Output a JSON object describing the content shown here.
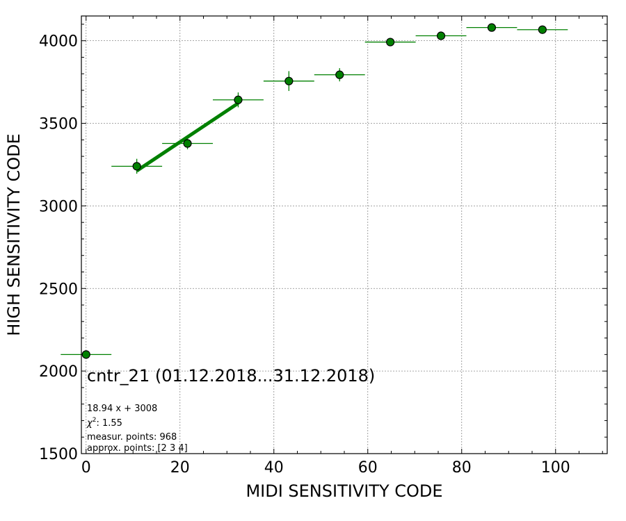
{
  "chart_data": {
    "type": "scatter",
    "xlabel": "MIDI SENSITIVITY CODE",
    "ylabel": "HIGH SENSITIVITY CODE",
    "xlim": [
      -1,
      111
    ],
    "ylim": [
      1500,
      4150
    ],
    "x_ticks": [
      0,
      20,
      40,
      60,
      80,
      100
    ],
    "y_ticks": [
      1500,
      2000,
      2500,
      3000,
      3500,
      4000
    ],
    "x_tick_labels": [
      "0",
      "20",
      "40",
      "60",
      "80",
      "100"
    ],
    "y_tick_labels": [
      "1500",
      "2000",
      "2500",
      "3000",
      "3500",
      "4000"
    ],
    "grid": true,
    "colors": {
      "marker": "#008000",
      "marker_edge": "#000000",
      "errorbar": "#008000",
      "fit_line": "#008000",
      "grid": "#888888"
    },
    "series": [
      {
        "points": [
          {
            "x": 0.0,
            "y": 2100,
            "xerr": 5.4,
            "yerr": 0
          },
          {
            "x": 10.8,
            "y": 3240,
            "xerr": 5.4,
            "yerr": 45
          },
          {
            "x": 21.6,
            "y": 3378,
            "xerr": 5.4,
            "yerr": 35
          },
          {
            "x": 32.4,
            "y": 3642,
            "xerr": 5.4,
            "yerr": 45
          },
          {
            "x": 43.2,
            "y": 3756,
            "xerr": 5.4,
            "yerr": 60
          },
          {
            "x": 54.0,
            "y": 3794,
            "xerr": 5.4,
            "yerr": 40
          },
          {
            "x": 64.8,
            "y": 3992,
            "xerr": 5.4,
            "yerr": 15
          },
          {
            "x": 75.6,
            "y": 4030,
            "xerr": 5.4,
            "yerr": 15
          },
          {
            "x": 86.4,
            "y": 4080,
            "xerr": 5.4,
            "yerr": 10
          },
          {
            "x": 97.2,
            "y": 4067,
            "xerr": 5.4,
            "yerr": 10
          }
        ]
      }
    ],
    "fit": {
      "slope": 18.94,
      "intercept": 3008,
      "x_range": [
        10.8,
        32.4
      ]
    },
    "annotations": {
      "title": "cntr_21 (01.12.2018...31.12.2018)",
      "equation": "18.94 x + 3008",
      "chi2_label": "χ",
      "chi2_sup": "2",
      "chi2_value": ": 1.55",
      "measur_points": "measur. points: 968",
      "approx_points": "approx. points: [2 3 4]"
    }
  }
}
